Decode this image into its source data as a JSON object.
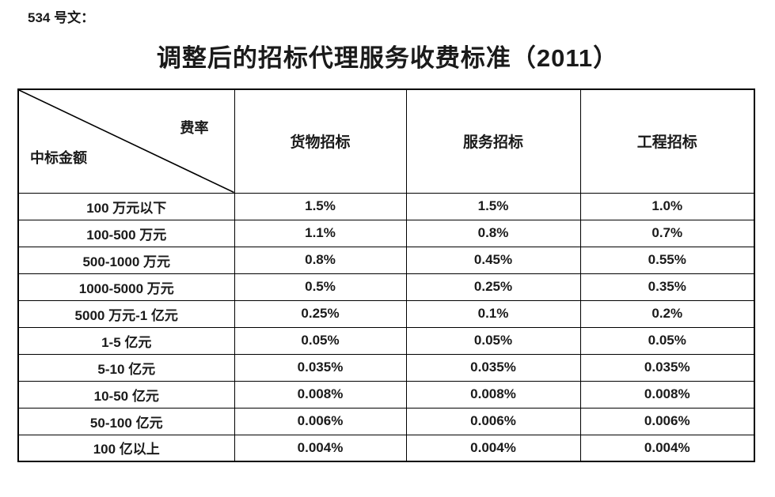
{
  "theme": {
    "background": "#ffffff",
    "text": "#1a1a1a",
    "border": "#000000"
  },
  "page": {
    "doc_label": "534 号文：",
    "title": "调整后的招标代理服务收费标准（2011）"
  },
  "table": {
    "corner": {
      "top_right": "费率",
      "bottom_left": "中标金额"
    },
    "columns": [
      "货物招标",
      "服务招标",
      "工程招标"
    ],
    "rows": [
      {
        "label": "100 万元以下",
        "values": [
          "1.5%",
          "1.5%",
          "1.0%"
        ]
      },
      {
        "label": "100-500 万元",
        "values": [
          "1.1%",
          "0.8%",
          "0.7%"
        ]
      },
      {
        "label": "500-1000 万元",
        "values": [
          "0.8%",
          "0.45%",
          "0.55%"
        ]
      },
      {
        "label": "1000-5000 万元",
        "values": [
          "0.5%",
          "0.25%",
          "0.35%"
        ]
      },
      {
        "label": "5000 万元-1 亿元",
        "values": [
          "0.25%",
          "0.1%",
          "0.2%"
        ]
      },
      {
        "label": "1-5 亿元",
        "values": [
          "0.05%",
          "0.05%",
          "0.05%"
        ]
      },
      {
        "label": "5-10 亿元",
        "values": [
          "0.035%",
          "0.035%",
          "0.035%"
        ]
      },
      {
        "label": "10-50 亿元",
        "values": [
          "0.008%",
          "0.008%",
          "0.008%"
        ]
      },
      {
        "label": "50-100 亿元",
        "values": [
          "0.006%",
          "0.006%",
          "0.006%"
        ]
      },
      {
        "label": "100 亿以上",
        "values": [
          "0.004%",
          "0.004%",
          "0.004%"
        ]
      }
    ]
  }
}
